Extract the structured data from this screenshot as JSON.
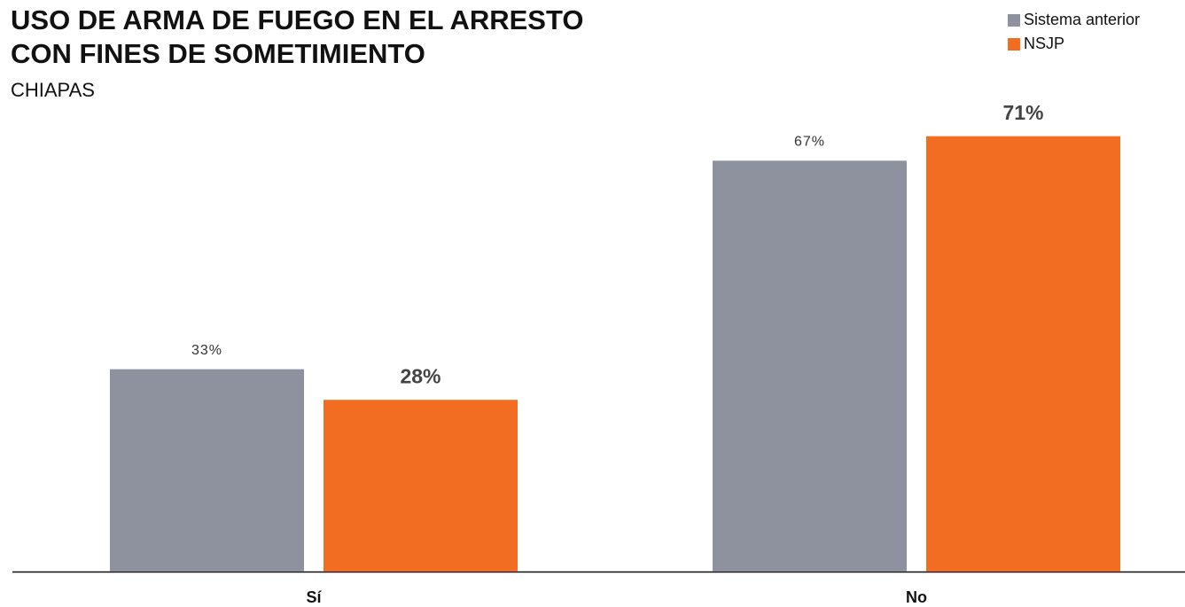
{
  "chart_data": {
    "type": "bar",
    "title": [
      "USO DE ARMA DE FUEGO EN EL ARRESTO",
      "CON FINES DE SOMETIMIENTO"
    ],
    "subtitle": "CHIAPAS",
    "categories": [
      "Sí",
      "No"
    ],
    "series": [
      {
        "name": "Sistema anterior",
        "color": "#8e929e",
        "values": [
          33,
          67
        ],
        "value_labels": [
          "33%",
          "67%"
        ]
      },
      {
        "name": "NSJP",
        "color": "#f26c22",
        "values": [
          28,
          71
        ],
        "value_labels": [
          "28%",
          "71%"
        ]
      }
    ],
    "legend": "top-right"
  }
}
